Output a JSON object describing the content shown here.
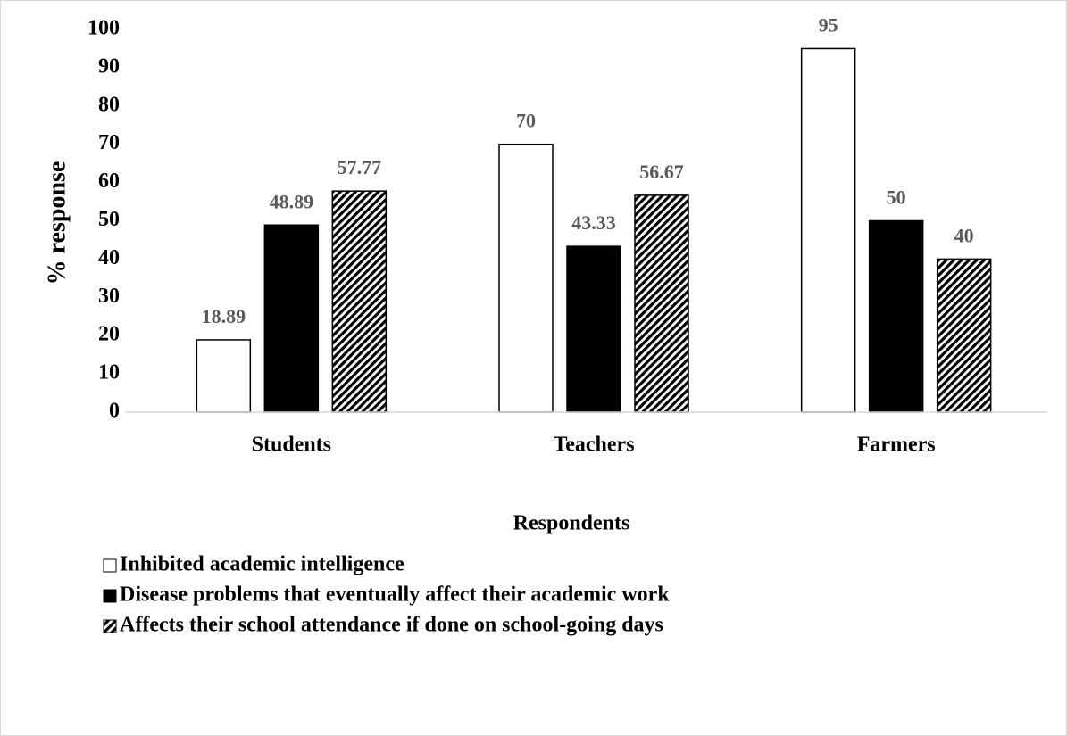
{
  "chart_data": {
    "type": "bar",
    "x_label": "Respondents",
    "y_label": "% response",
    "categories": [
      "Students",
      "Teachers",
      "Farmers"
    ],
    "series": [
      {
        "name": "Inhibited academic intelligence",
        "color": "#ffffff",
        "values": [
          18.89,
          70,
          95
        ]
      },
      {
        "name": "Disease problems that eventually affect their academic work",
        "color": "#000000",
        "values": [
          48.89,
          43.33,
          50
        ]
      },
      {
        "name": "Affects their school attendance if done on school-going days",
        "color": "#000000",
        "pattern": "diagonal-hatch",
        "values": [
          57.77,
          56.67,
          40
        ]
      }
    ],
    "ylim": [
      0,
      100
    ],
    "yticks": [
      0,
      10,
      20,
      30,
      40,
      50,
      60,
      70,
      80,
      90,
      100
    ],
    "grid": false,
    "legend": "bottom-left"
  }
}
